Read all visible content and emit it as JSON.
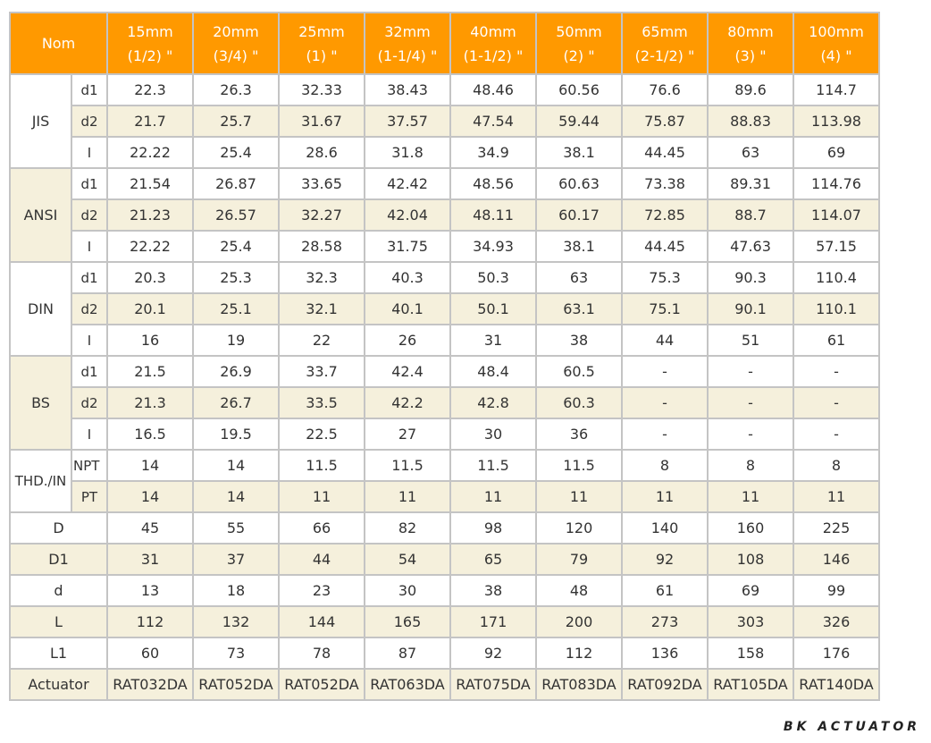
{
  "header": {
    "nom": "Nom",
    "sizes": [
      {
        "mm": "15mm",
        "inch": "(1/2) \""
      },
      {
        "mm": "20mm",
        "inch": "(3/4) \""
      },
      {
        "mm": "25mm",
        "inch": "(1) \""
      },
      {
        "mm": "32mm",
        "inch": "(1-1/4) \""
      },
      {
        "mm": "40mm",
        "inch": "(1-1/2) \""
      },
      {
        "mm": "50mm",
        "inch": "(2) \""
      },
      {
        "mm": "65mm",
        "inch": "(2-1/2) \""
      },
      {
        "mm": "80mm",
        "inch": "(3) \""
      },
      {
        "mm": "100mm",
        "inch": "(4) \""
      }
    ]
  },
  "groups": [
    {
      "name": "JIS",
      "rows": [
        {
          "label": "d1",
          "values": [
            "22.3",
            "26.3",
            "32.33",
            "38.43",
            "48.46",
            "60.56",
            "76.6",
            "89.6",
            "114.7"
          ]
        },
        {
          "label": "d2",
          "values": [
            "21.7",
            "25.7",
            "31.67",
            "37.57",
            "47.54",
            "59.44",
            "75.87",
            "88.83",
            "113.98"
          ]
        },
        {
          "label": "I",
          "values": [
            "22.22",
            "25.4",
            "28.6",
            "31.8",
            "34.9",
            "38.1",
            "44.45",
            "63",
            "69"
          ]
        }
      ]
    },
    {
      "name": "ANSI",
      "rows": [
        {
          "label": "d1",
          "values": [
            "21.54",
            "26.87",
            "33.65",
            "42.42",
            "48.56",
            "60.63",
            "73.38",
            "89.31",
            "114.76"
          ]
        },
        {
          "label": "d2",
          "values": [
            "21.23",
            "26.57",
            "32.27",
            "42.04",
            "48.11",
            "60.17",
            "72.85",
            "88.7",
            "114.07"
          ]
        },
        {
          "label": "I",
          "values": [
            "22.22",
            "25.4",
            "28.58",
            "31.75",
            "34.93",
            "38.1",
            "44.45",
            "47.63",
            "57.15"
          ]
        }
      ]
    },
    {
      "name": "DIN",
      "rows": [
        {
          "label": "d1",
          "values": [
            "20.3",
            "25.3",
            "32.3",
            "40.3",
            "50.3",
            "63",
            "75.3",
            "90.3",
            "110.4"
          ]
        },
        {
          "label": "d2",
          "values": [
            "20.1",
            "25.1",
            "32.1",
            "40.1",
            "50.1",
            "63.1",
            "75.1",
            "90.1",
            "110.1"
          ]
        },
        {
          "label": "I",
          "values": [
            "16",
            "19",
            "22",
            "26",
            "31",
            "38",
            "44",
            "51",
            "61"
          ]
        }
      ]
    },
    {
      "name": "BS",
      "rows": [
        {
          "label": "d1",
          "values": [
            "21.5",
            "26.9",
            "33.7",
            "42.4",
            "48.4",
            "60.5",
            "-",
            "-",
            "-"
          ]
        },
        {
          "label": "d2",
          "values": [
            "21.3",
            "26.7",
            "33.5",
            "42.2",
            "42.8",
            "60.3",
            "-",
            "-",
            "-"
          ]
        },
        {
          "label": "I",
          "values": [
            "16.5",
            "19.5",
            "22.5",
            "27",
            "30",
            "36",
            "-",
            "-",
            "-"
          ]
        }
      ]
    },
    {
      "name": "THD./IN",
      "rows": [
        {
          "label": "NPT",
          "values": [
            "14",
            "14",
            "11.5",
            "11.5",
            "11.5",
            "11.5",
            "8",
            "8",
            "8"
          ]
        },
        {
          "label": "PT",
          "values": [
            "14",
            "14",
            "11",
            "11",
            "11",
            "11",
            "11",
            "11",
            "11"
          ]
        }
      ]
    }
  ],
  "dims": [
    {
      "label": "D",
      "values": [
        "45",
        "55",
        "66",
        "82",
        "98",
        "120",
        "140",
        "160",
        "225"
      ]
    },
    {
      "label": "D1",
      "values": [
        "31",
        "37",
        "44",
        "54",
        "65",
        "79",
        "92",
        "108",
        "146"
      ]
    },
    {
      "label": "d",
      "values": [
        "13",
        "18",
        "23",
        "30",
        "38",
        "48",
        "61",
        "69",
        "99"
      ]
    },
    {
      "label": "L",
      "values": [
        "112",
        "132",
        "144",
        "165",
        "171",
        "200",
        "273",
        "303",
        "326"
      ]
    },
    {
      "label": "L1",
      "values": [
        "60",
        "73",
        "78",
        "87",
        "92",
        "112",
        "136",
        "158",
        "176"
      ]
    },
    {
      "label": "Actuator",
      "values": [
        "RAT032DA",
        "RAT052DA",
        "RAT052DA",
        "RAT063DA",
        "RAT075DA",
        "RAT083DA",
        "RAT092DA",
        "RAT105DA",
        "RAT140DA"
      ]
    }
  ],
  "brand": "BK ACTUATOR",
  "colors": {
    "header": "#ff9900",
    "stripe": "#f5f0dc",
    "border": "#c4c4c4"
  }
}
